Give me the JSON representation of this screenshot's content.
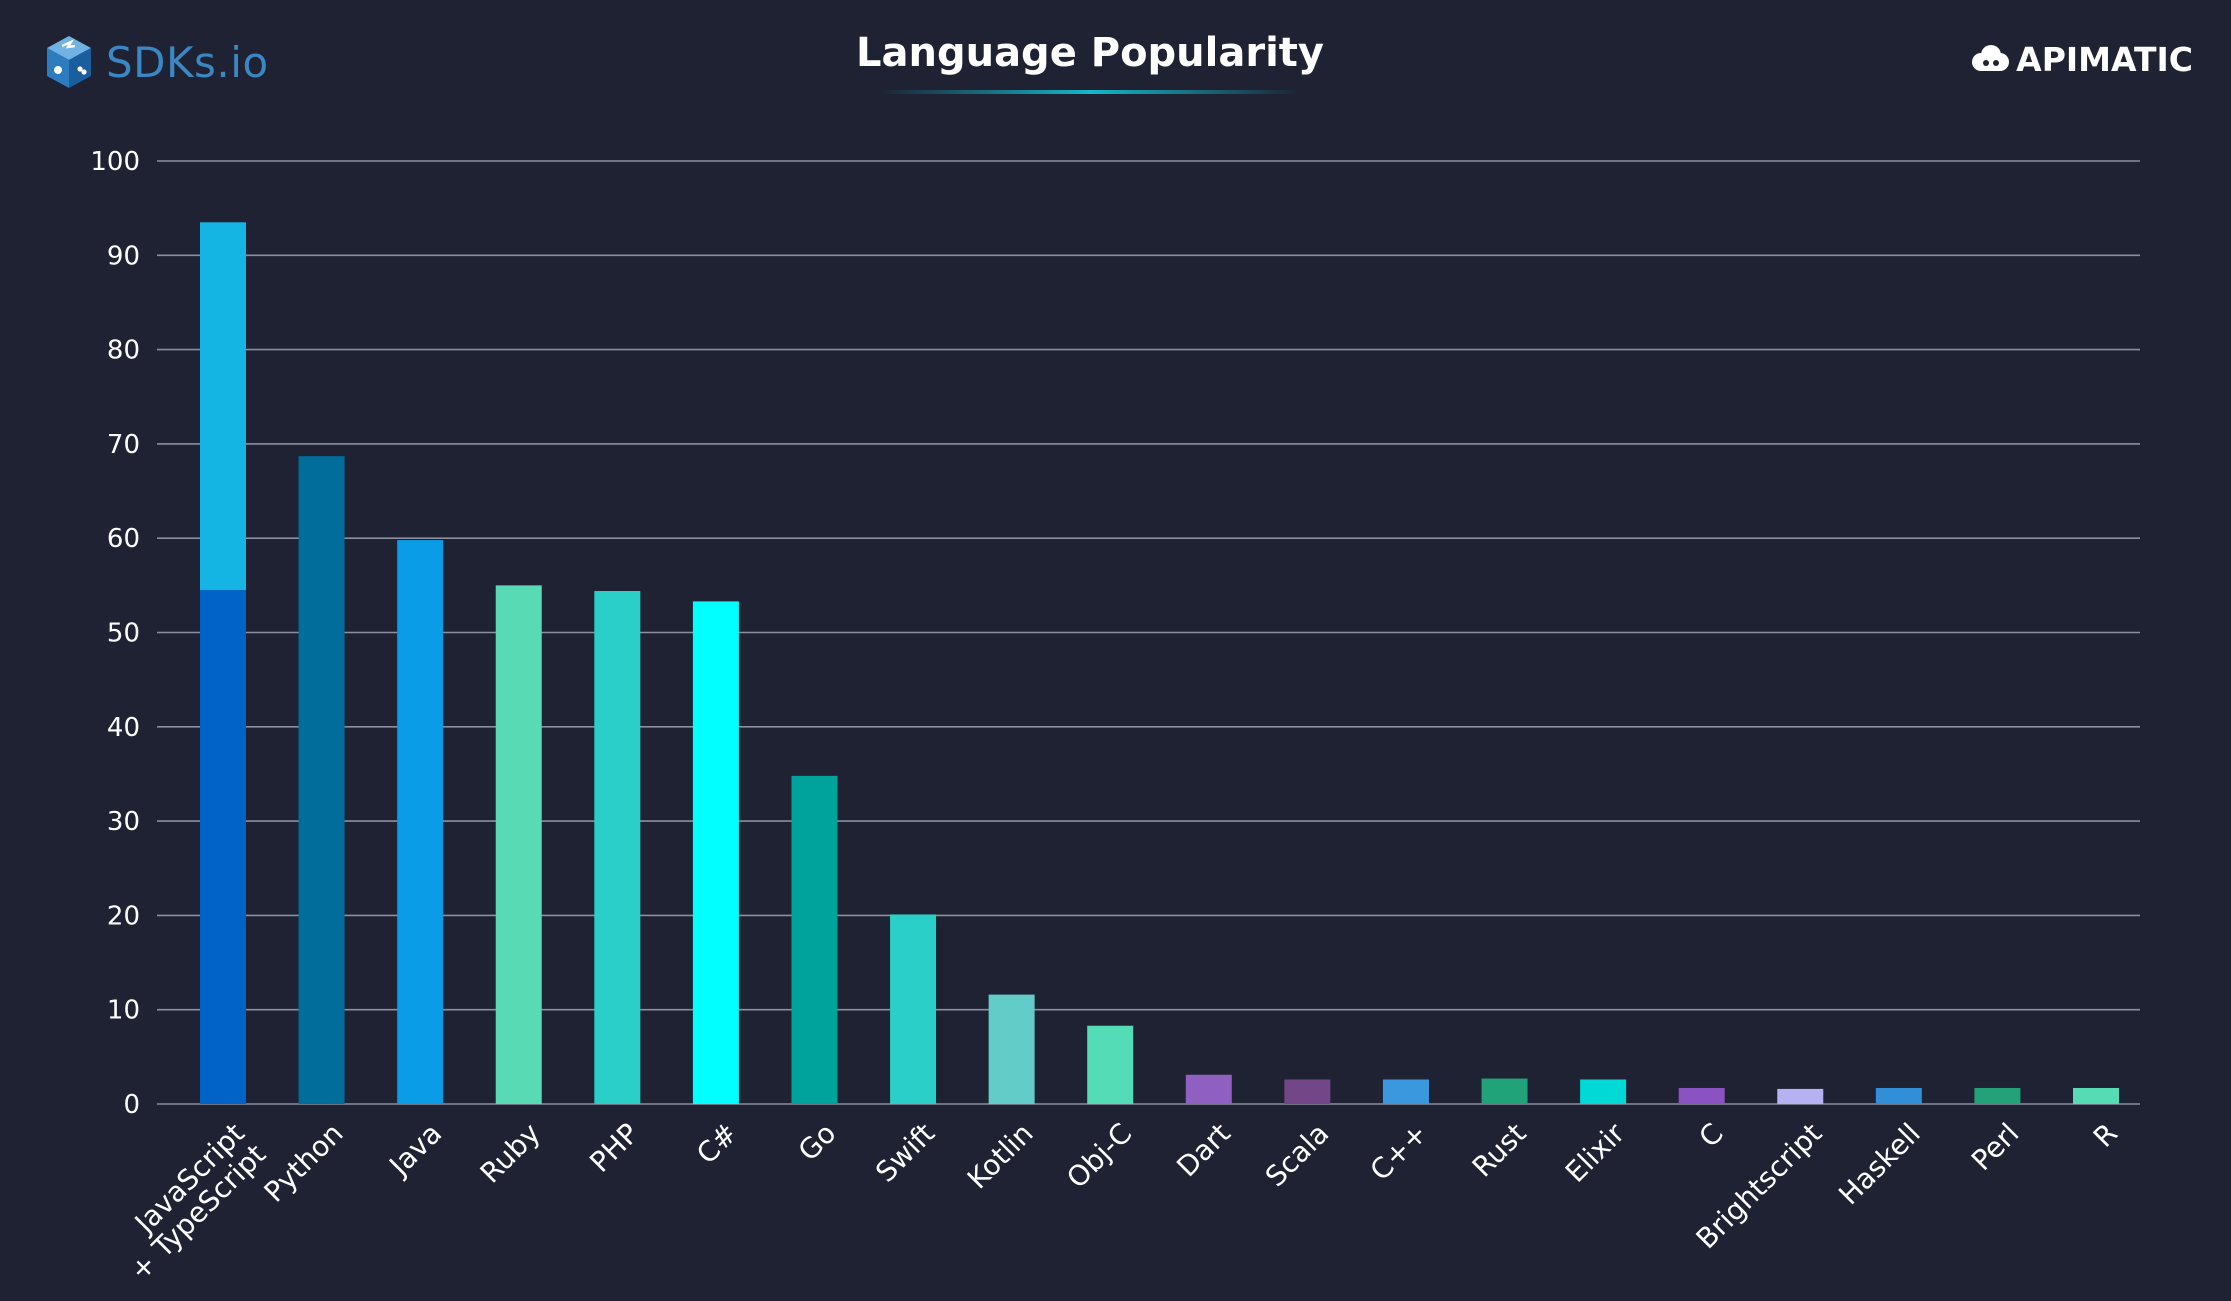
{
  "brand": {
    "left_name": "SDKs.io",
    "right_name": "APIMATIC"
  },
  "colors": {
    "background": "#1e2233",
    "gridline": "#8c909c",
    "text": "#ffffff"
  },
  "chart_data": {
    "type": "bar",
    "title": "Language Popularity",
    "xlabel": "",
    "ylabel": "",
    "ylim": [
      0,
      100
    ],
    "yticks": [
      0,
      10,
      20,
      30,
      40,
      50,
      60,
      70,
      80,
      90,
      100
    ],
    "grid": true,
    "categories": [
      [
        "JavaScript",
        "+ TypeScript"
      ],
      [
        "Python"
      ],
      [
        "Java"
      ],
      [
        "Ruby"
      ],
      [
        "PHP"
      ],
      [
        "C#"
      ],
      [
        "Go"
      ],
      [
        "Swift"
      ],
      [
        "Kotlin"
      ],
      [
        "Obj-C"
      ],
      [
        "Dart"
      ],
      [
        "Scala"
      ],
      [
        "C++"
      ],
      [
        "Rust"
      ],
      [
        "Elixir"
      ],
      [
        "C"
      ],
      [
        "Brightscript"
      ],
      [
        "Haskell"
      ],
      [
        "Perl"
      ],
      [
        "R"
      ]
    ],
    "bars": [
      {
        "segments": [
          {
            "value": 54.5,
            "color": "#0162c8"
          },
          {
            "value": 39.0,
            "color": "#14b5e3"
          }
        ]
      },
      {
        "segments": [
          {
            "value": 68.7,
            "color": "#016d9b"
          }
        ]
      },
      {
        "segments": [
          {
            "value": 59.8,
            "color": "#0a9ce6"
          }
        ]
      },
      {
        "segments": [
          {
            "value": 55.0,
            "color": "#58dbb5"
          }
        ]
      },
      {
        "segments": [
          {
            "value": 54.4,
            "color": "#2acfc7"
          }
        ]
      },
      {
        "segments": [
          {
            "value": 53.3,
            "color": "#00fffe"
          }
        ]
      },
      {
        "segments": [
          {
            "value": 34.8,
            "color": "#00a39b"
          }
        ]
      },
      {
        "segments": [
          {
            "value": 20.1,
            "color": "#2acfc7"
          }
        ]
      },
      {
        "segments": [
          {
            "value": 11.6,
            "color": "#62cdc8"
          }
        ]
      },
      {
        "segments": [
          {
            "value": 8.3,
            "color": "#53dcb6"
          }
        ]
      },
      {
        "segments": [
          {
            "value": 3.1,
            "color": "#8f5fc2"
          }
        ]
      },
      {
        "segments": [
          {
            "value": 2.6,
            "color": "#734787"
          }
        ]
      },
      {
        "segments": [
          {
            "value": 2.6,
            "color": "#3998de"
          }
        ]
      },
      {
        "segments": [
          {
            "value": 2.7,
            "color": "#21a37a"
          }
        ]
      },
      {
        "segments": [
          {
            "value": 2.6,
            "color": "#00d9d6"
          }
        ]
      },
      {
        "segments": [
          {
            "value": 1.7,
            "color": "#8b53c2"
          }
        ]
      },
      {
        "segments": [
          {
            "value": 1.6,
            "color": "#b6b2f1"
          }
        ]
      },
      {
        "segments": [
          {
            "value": 1.7,
            "color": "#318ed7"
          }
        ]
      },
      {
        "segments": [
          {
            "value": 1.7,
            "color": "#23a27a"
          }
        ]
      },
      {
        "segments": [
          {
            "value": 1.7,
            "color": "#55dcb4"
          }
        ]
      }
    ]
  }
}
